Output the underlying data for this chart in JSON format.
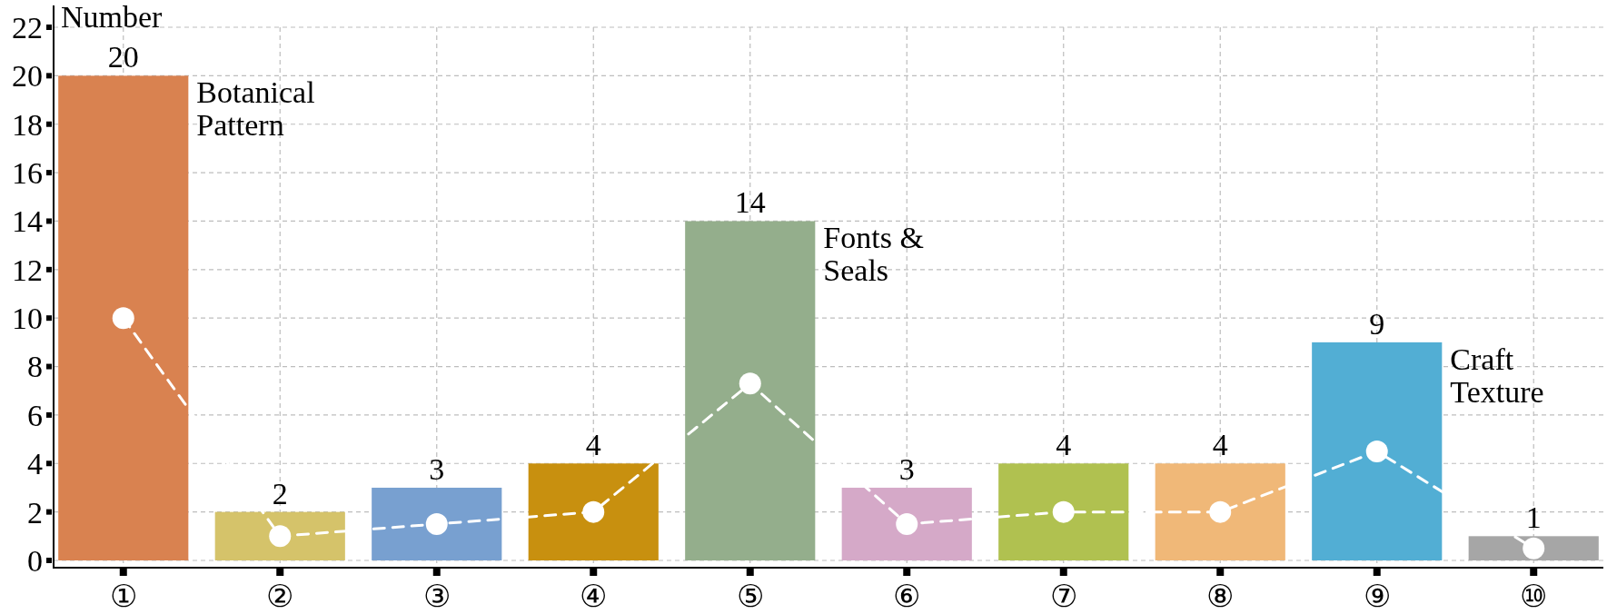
{
  "chart_data": {
    "type": "bar",
    "ylabel": "Number",
    "categories": [
      "①",
      "②",
      "③",
      "④",
      "⑤",
      "⑥",
      "⑦",
      "⑧",
      "⑨",
      "⑩"
    ],
    "series": [
      {
        "values": [
          20,
          2,
          3,
          4,
          14,
          3,
          4,
          4,
          9,
          1
        ],
        "colors": [
          "#d98250",
          "#d5c36a",
          "#78a0d0",
          "#c8900f",
          "#94ae8c",
          "#d5a9c8",
          "#b0c150",
          "#f0b878",
          "#52aed4",
          "#a6a6a6"
        ],
        "value_labels": [
          "20",
          "2",
          "3",
          "4",
          "14",
          "3",
          "4",
          "4",
          "9",
          "1"
        ]
      },
      {
        "type": "line",
        "color": "#ffffff",
        "values": [
          10,
          1,
          1.5,
          2,
          7.3,
          1.5,
          2,
          2,
          4.5,
          0.5
        ],
        "marker": "circle",
        "line_style": "dashed"
      }
    ],
    "ylim": [
      -0.3,
      22.9
    ],
    "yticks": [
      0,
      2,
      4,
      6,
      8,
      10,
      12,
      14,
      16,
      18,
      20,
      22
    ],
    "grid": true,
    "annotations": [
      {
        "text": "Botanical Pattern",
        "x": "①",
        "y": 20
      },
      {
        "text": "Fonts & Seals",
        "x": "⑤",
        "y": 14
      },
      {
        "text": "Craft Texture",
        "x": "⑨",
        "y": 9
      }
    ]
  }
}
